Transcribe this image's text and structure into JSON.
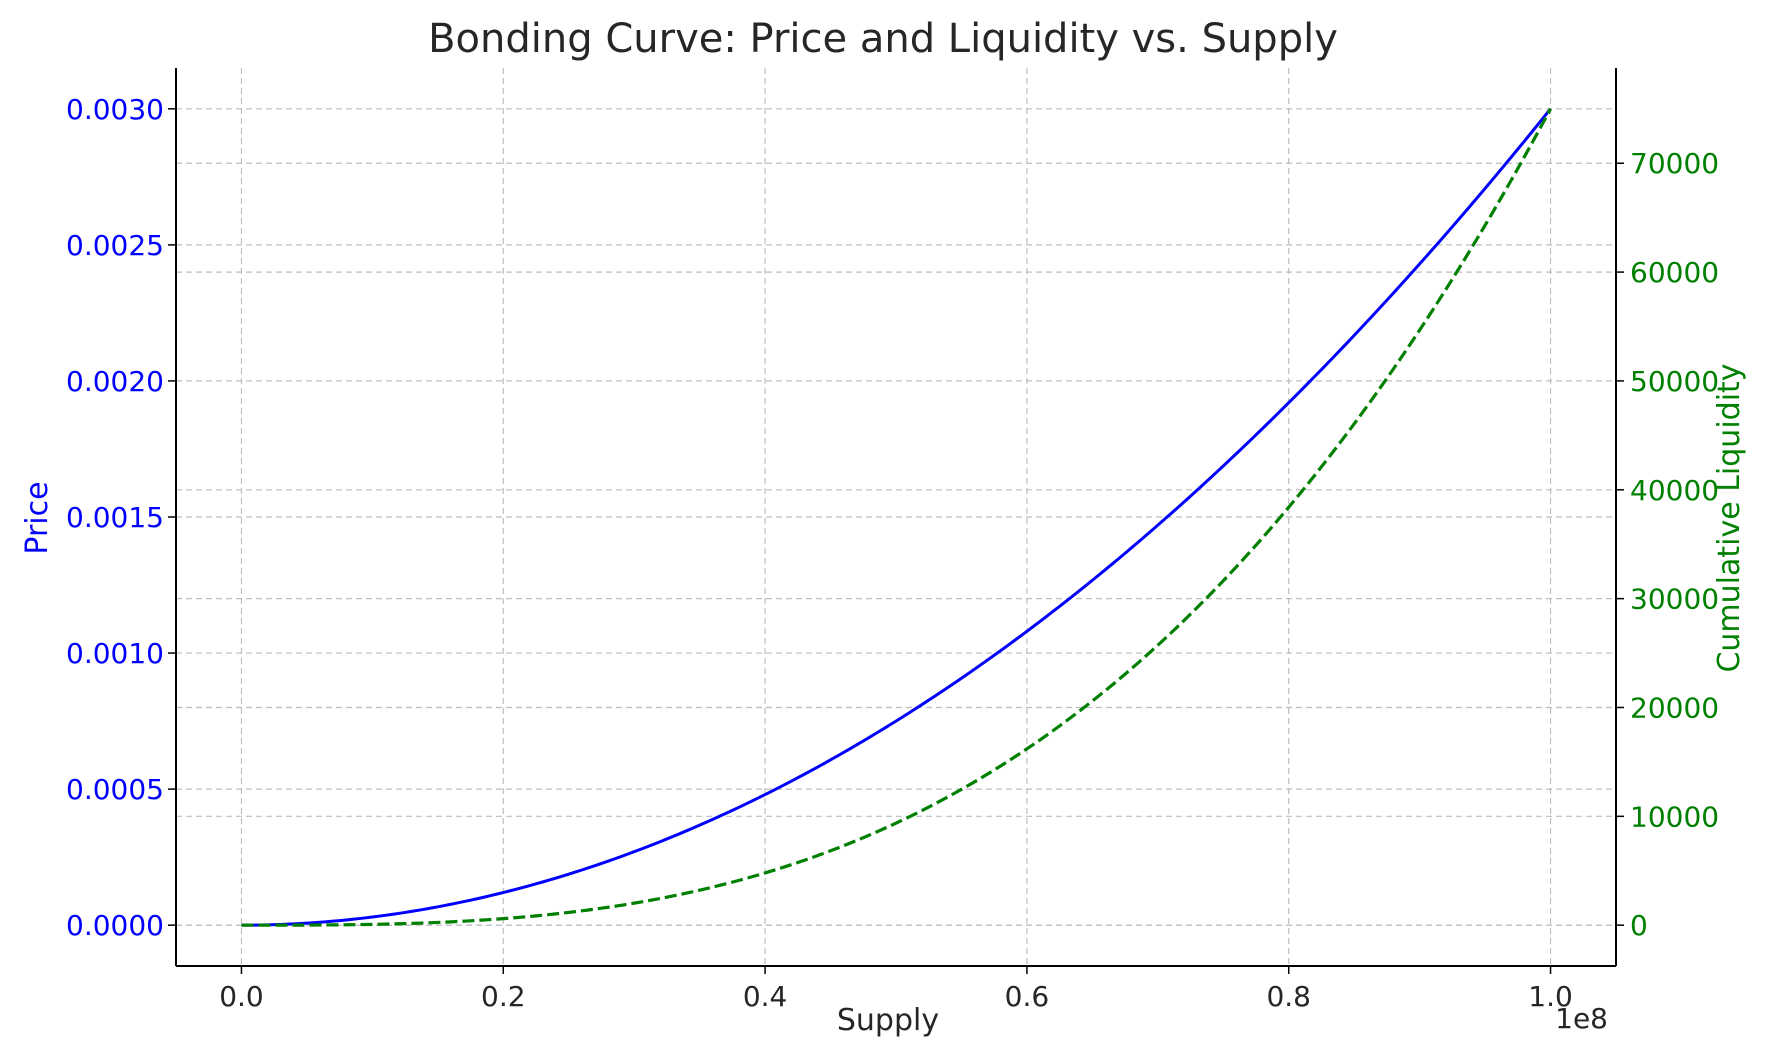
{
  "chart_data": {
    "type": "line",
    "title": "Bonding Curve: Price and Liquidity vs. Supply",
    "xlabel": "Supply",
    "x_offset_label": "1e8",
    "xlim": [
      -0.05,
      1.05
    ],
    "x_ticks": [
      0.0,
      0.2,
      0.4,
      0.6,
      0.8,
      1.0
    ],
    "x_tick_labels": [
      "0.0",
      "0.2",
      "0.4",
      "0.6",
      "0.8",
      "1.0"
    ],
    "grid": true,
    "left_axis": {
      "label": "Price",
      "color": "#0000ff",
      "ylim": [
        -0.00015,
        0.00315
      ],
      "ticks": [
        0.0,
        0.0005,
        0.001,
        0.0015,
        0.002,
        0.0025,
        0.003
      ],
      "tick_labels": [
        "0.0000",
        "0.0005",
        "0.0010",
        "0.0015",
        "0.0020",
        "0.0025",
        "0.0030"
      ]
    },
    "right_axis": {
      "label": "Cumulative Liquidity",
      "color": "#008000",
      "ylim": [
        -3750,
        78750
      ],
      "ticks": [
        0,
        10000,
        20000,
        30000,
        40000,
        50000,
        60000,
        70000
      ],
      "tick_labels": [
        "0",
        "10000",
        "20000",
        "30000",
        "40000",
        "50000",
        "60000",
        "70000"
      ]
    },
    "series": [
      {
        "axis": "left",
        "color": "#0000ff",
        "style": "solid",
        "x": [
          0.0,
          0.05,
          0.1,
          0.15,
          0.2,
          0.25,
          0.3,
          0.35,
          0.4,
          0.45,
          0.5,
          0.55,
          0.6,
          0.65,
          0.7,
          0.75,
          0.8,
          0.85,
          0.9,
          0.95,
          1.0
        ],
        "y": [
          0.0,
          7.5e-06,
          3e-05,
          6.75e-05,
          0.00012,
          0.0001875,
          0.00027,
          0.0003675,
          0.00048,
          0.0006075,
          0.00075,
          0.0009075,
          0.00108,
          0.0012675,
          0.00147,
          0.0016875,
          0.00192,
          0.0021675,
          0.00243,
          0.0027075,
          0.003
        ]
      },
      {
        "axis": "right",
        "color": "#008000",
        "style": "dashed",
        "x": [
          0.0,
          0.05,
          0.1,
          0.15,
          0.2,
          0.25,
          0.3,
          0.35,
          0.4,
          0.45,
          0.5,
          0.55,
          0.6,
          0.65,
          0.7,
          0.75,
          0.8,
          0.85,
          0.9,
          0.95,
          1.0
        ],
        "y": [
          0,
          9,
          75,
          253,
          600,
          1172,
          2025,
          3216,
          4800,
          6834,
          9375,
          12478,
          16200,
          20597,
          25725,
          31641,
          38400,
          46059,
          54675,
          64303,
          75000
        ]
      }
    ]
  }
}
